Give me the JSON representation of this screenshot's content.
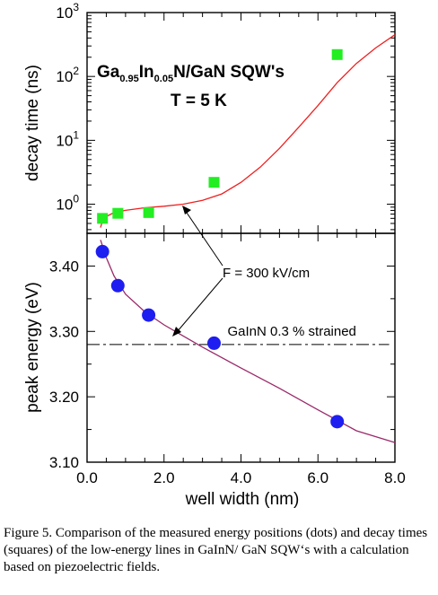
{
  "chart_data": [
    {
      "type": "scatter",
      "panel": "top",
      "ylabel": "decay time (ns)",
      "yscale": "log",
      "ylim": [
        0.35,
        1000
      ],
      "xlim": [
        0,
        8.0
      ],
      "y_tick_labels": [
        {
          "base": "10",
          "exp": "3",
          "value": 1000
        },
        {
          "base": "10",
          "exp": "2",
          "value": 100
        },
        {
          "base": "10",
          "exp": "1",
          "value": 10
        },
        {
          "base": "10",
          "exp": "0",
          "value": 1
        }
      ],
      "title_parts": {
        "pre": "Ga",
        "sub1": "0.95",
        "mid": "In",
        "sub2": "0.05",
        "post": "N/GaN SQW's"
      },
      "subtitle": "T = 5 K",
      "series": [
        {
          "kind": "markers",
          "marker": "square",
          "color": "#22ee22",
          "points": [
            [
              0.4,
              0.6
            ],
            [
              0.8,
              0.72
            ],
            [
              1.6,
              0.74
            ],
            [
              3.3,
              2.2
            ],
            [
              6.5,
              220
            ]
          ]
        },
        {
          "kind": "line",
          "color": "#ee2020",
          "points": [
            [
              0.35,
              0.43
            ],
            [
              0.4,
              0.55
            ],
            [
              0.5,
              0.64
            ],
            [
              0.7,
              0.74
            ],
            [
              1.0,
              0.8
            ],
            [
              1.5,
              0.88
            ],
            [
              2.0,
              0.93
            ],
            [
              2.5,
              1.0
            ],
            [
              3.0,
              1.15
            ],
            [
              3.5,
              1.45
            ],
            [
              4.0,
              2.2
            ],
            [
              4.5,
              3.8
            ],
            [
              5.0,
              7.5
            ],
            [
              5.5,
              16
            ],
            [
              6.0,
              35
            ],
            [
              6.5,
              80
            ],
            [
              7.0,
              160
            ],
            [
              7.5,
              280
            ],
            [
              8.0,
              450
            ]
          ]
        }
      ]
    },
    {
      "type": "scatter",
      "panel": "bottom",
      "xlabel": "well width (nm)",
      "ylabel": "peak energy (eV)",
      "xlim": [
        0,
        8.0
      ],
      "ylim": [
        3.1,
        3.45
      ],
      "x_ticks": [
        0.0,
        2.0,
        4.0,
        6.0,
        8.0
      ],
      "x_tick_labels": [
        "0.0",
        "2.0",
        "4.0",
        "6.0",
        "8.0"
      ],
      "y_ticks": [
        3.1,
        3.2,
        3.3,
        3.4
      ],
      "y_tick_labels": [
        "3.10",
        "3.20",
        "3.30",
        "3.40"
      ],
      "reference_line": {
        "y": 3.28,
        "x_range": [
          0,
          7.85
        ],
        "label": "GaInN 0.3 % strained",
        "style": "dash-dot"
      },
      "series": [
        {
          "kind": "markers",
          "marker": "circle",
          "color": "#1e1ef0",
          "points": [
            [
              0.4,
              3.422
            ],
            [
              0.8,
              3.37
            ],
            [
              1.6,
              3.325
            ],
            [
              3.3,
              3.282
            ],
            [
              6.5,
              3.162
            ]
          ]
        },
        {
          "kind": "line",
          "color": "#9a2a6a",
          "points": [
            [
              0.35,
              3.44
            ],
            [
              0.5,
              3.413
            ],
            [
              0.7,
              3.385
            ],
            [
              1.0,
              3.357
            ],
            [
              1.5,
              3.33
            ],
            [
              2.0,
              3.31
            ],
            [
              2.5,
              3.293
            ],
            [
              3.0,
              3.276
            ],
            [
              4.0,
              3.244
            ],
            [
              5.0,
              3.213
            ],
            [
              6.0,
              3.18
            ],
            [
              7.0,
              3.148
            ],
            [
              8.0,
              3.13
            ]
          ]
        }
      ]
    }
  ],
  "annotation": {
    "label": "F = 300 kV/cm"
  },
  "caption": "Figure 5. Comparison of the measured energy positions (dots) and  decay times (squares) of the low-energy lines in GaInN/ GaN SQW‘s  with a calculation based on piezoelectric fields."
}
